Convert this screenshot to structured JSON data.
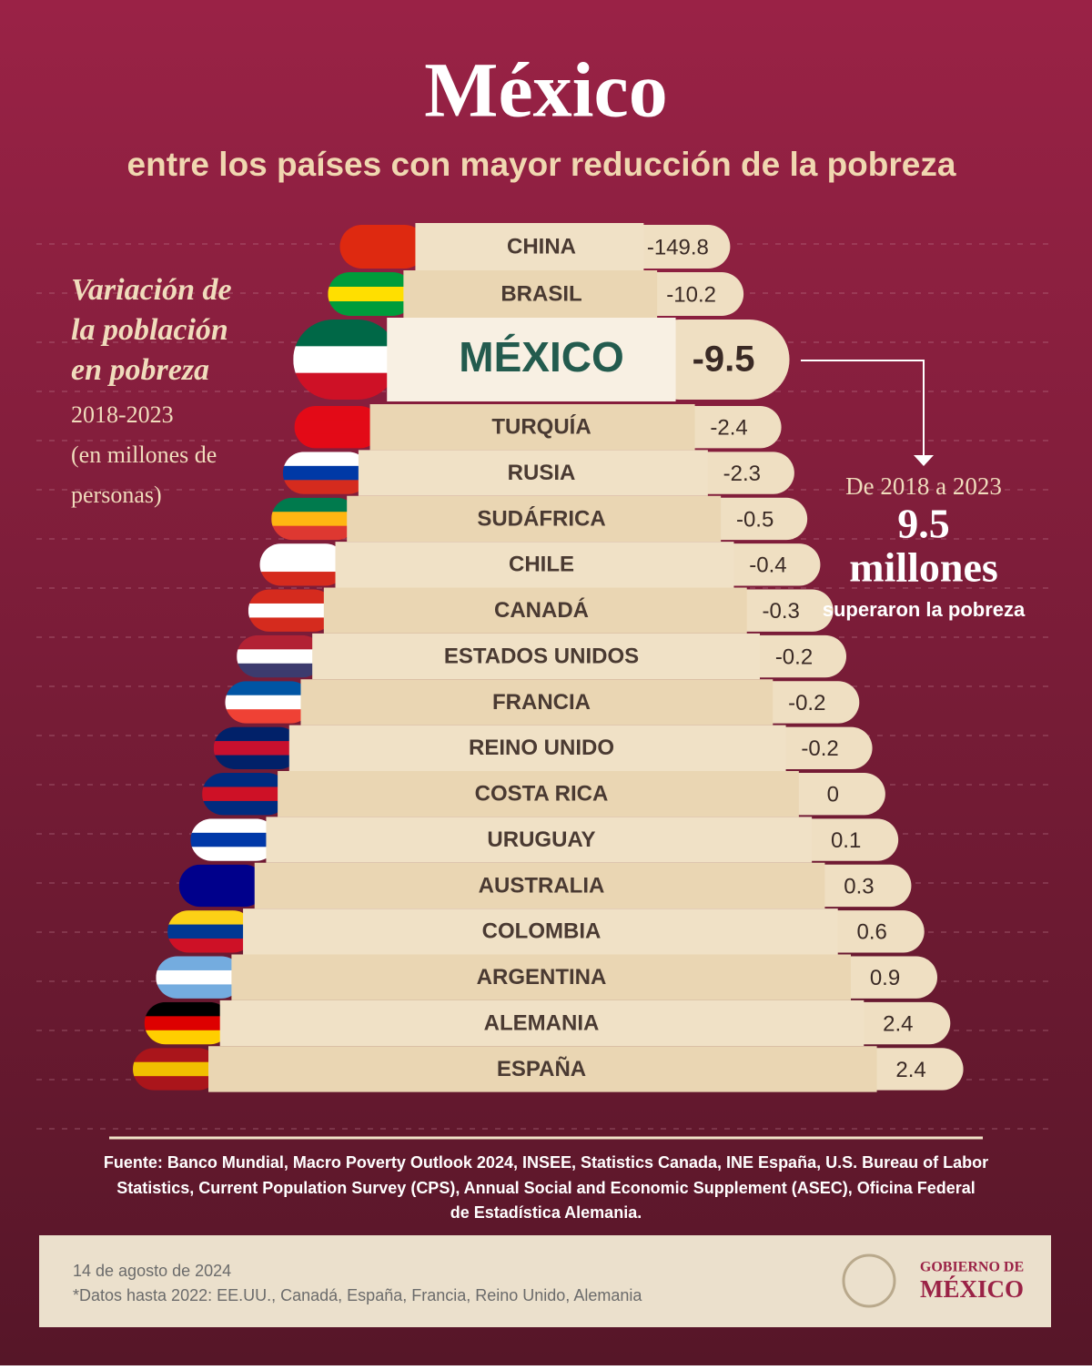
{
  "header": {
    "title": "México",
    "subtitle": "entre los países con mayor reducción de la pobreza"
  },
  "side_note": {
    "heading": [
      "Variación de",
      "la población",
      "en pobreza"
    ],
    "period": "2018-2023",
    "units": [
      "(en millones de",
      "personas)"
    ]
  },
  "rows": [
    {
      "country": "CHINA",
      "value": -149.8
    },
    {
      "country": "BRASIL",
      "value": -10.2
    },
    {
      "country": "MÉXICO",
      "value": -9.5
    },
    {
      "country": "TURQUÍA",
      "value": -2.4
    },
    {
      "country": "RUSIA",
      "value": -2.3
    },
    {
      "country": "SUDÁFRICA",
      "value": -0.5
    },
    {
      "country": "CHILE",
      "value": -0.4
    },
    {
      "country": "CANADÁ",
      "value": -0.3
    },
    {
      "country": "ESTADOS UNIDOS",
      "value": -0.2
    },
    {
      "country": "FRANCIA",
      "value": -0.2
    },
    {
      "country": "REINO UNIDO",
      "value": -0.2
    },
    {
      "country": "COSTA RICA",
      "value": 0
    },
    {
      "country": "URUGUAY",
      "value": 0.1
    },
    {
      "country": "AUSTRALIA",
      "value": 0.3
    },
    {
      "country": "COLOMBIA",
      "value": 0.6
    },
    {
      "country": "ARGENTINA",
      "value": 0.9
    },
    {
      "country": "ALEMANIA",
      "value": 2.4
    },
    {
      "country": "ESPAÑA",
      "value": 2.4
    }
  ],
  "highlight": {
    "intro": "De 2018 a 2023",
    "figure": 9.5,
    "unit": "millones",
    "caption": "superaron la pobreza"
  },
  "source": [
    "Fuente: Banco Mundial, Macro Poverty Outlook 2024, INSEE, Statistics Canada, INE España, U.S. Bureau of Labor",
    "Statistics, Current Population Survey (CPS), Annual Social and Economic Supplement (ASEC), Oficina Federal",
    "de Estadística Alemania."
  ],
  "footer": {
    "date": "14 de agosto de 2024",
    "note": "*Datos hasta 2022: EE.UU., Canadá, España, Francia, Reino Unido, Alemania",
    "logo": [
      "GOBIERNO DE",
      "MÉXICO"
    ]
  }
}
